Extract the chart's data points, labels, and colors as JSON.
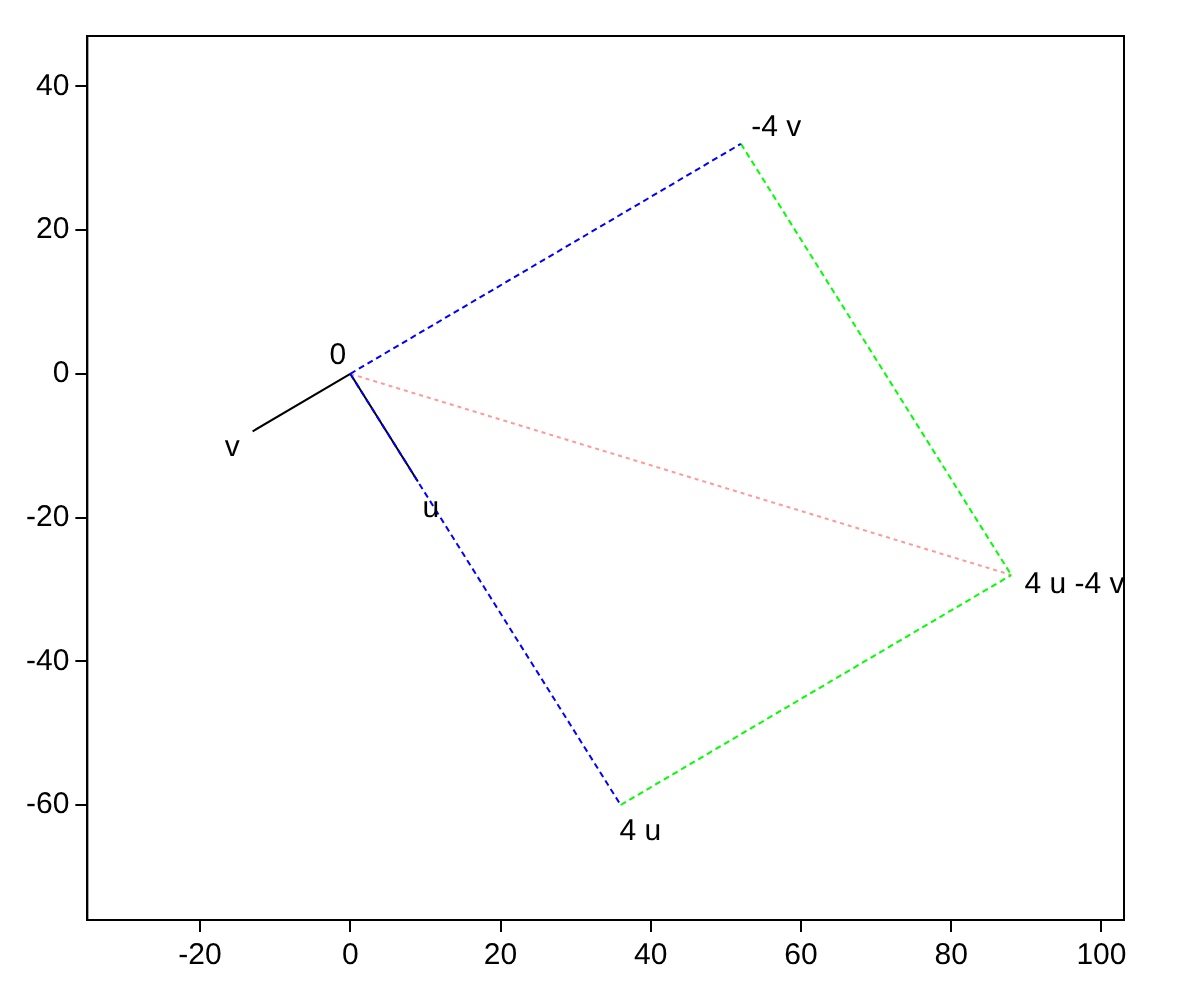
{
  "chart_data": {
    "type": "line",
    "xlim": [
      -35,
      103
    ],
    "ylim": [
      -76,
      47
    ],
    "xticks": [
      -20,
      0,
      20,
      40,
      60,
      80,
      100
    ],
    "yticks": [
      -60,
      -40,
      -20,
      0,
      20,
      40
    ],
    "grid": false,
    "legend": false,
    "marker": "none",
    "series": [
      {
        "color": "#0000ff",
        "line_style": "dashed",
        "x": [
          0,
          52
        ],
        "values": [
          0,
          32
        ]
      },
      {
        "color": "#0000ff",
        "line_style": "dashed",
        "x": [
          0,
          36
        ],
        "values": [
          0,
          -60
        ]
      },
      {
        "color": "#00ff00",
        "line_style": "dashed",
        "x": [
          52,
          88
        ],
        "values": [
          32,
          -28
        ]
      },
      {
        "color": "#00ff00",
        "line_style": "dashed",
        "x": [
          36,
          88
        ],
        "values": [
          -60,
          -28
        ]
      },
      {
        "color": "#ff9999",
        "line_style": "dotted",
        "x": [
          0,
          88
        ],
        "values": [
          0,
          -28
        ]
      },
      {
        "color": "#000000",
        "line_style": "solid",
        "x": [
          0,
          9
        ],
        "values": [
          0,
          -15
        ]
      },
      {
        "color": "#000000",
        "line_style": "solid",
        "x": [
          0,
          -13
        ],
        "values": [
          0,
          -8
        ]
      }
    ],
    "annotations": [
      {
        "text": "0",
        "x": 0,
        "y": 0
      },
      {
        "text": "u",
        "x": 9,
        "y": -15
      },
      {
        "text": "v",
        "x": -13,
        "y": -8
      },
      {
        "text": "4 u",
        "x": 36,
        "y": -60
      },
      {
        "text": "-4 v",
        "x": 52,
        "y": 32
      },
      {
        "text": "4 u -4 v",
        "x": 88,
        "y": -28
      }
    ]
  }
}
